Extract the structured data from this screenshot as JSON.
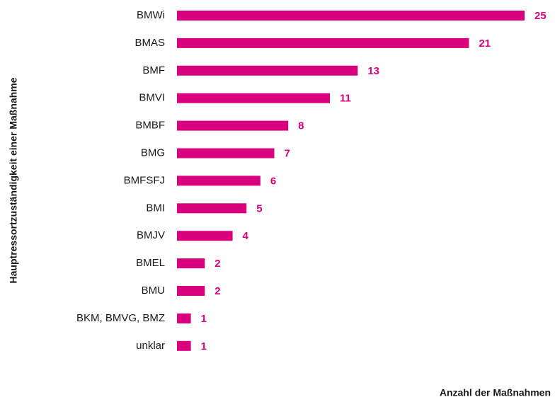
{
  "chart_data": {
    "type": "bar",
    "orientation": "horizontal",
    "y_axis_label": "Hauptressortzuständigkeit einer Maßnahme",
    "x_axis_label": "Anzahl der Maßnahmen",
    "categories": [
      "BMWi",
      "BMAS",
      "BMF",
      "BMVI",
      "BMBF",
      "BMG",
      "BMFSFJ",
      "BMI",
      "BMJV",
      "BMEL",
      "BMU",
      "BKM, BMVG, BMZ",
      "unklar"
    ],
    "values": [
      25,
      21,
      13,
      11,
      8,
      7,
      6,
      5,
      4,
      2,
      2,
      1,
      1
    ],
    "color": "#d9007e"
  }
}
